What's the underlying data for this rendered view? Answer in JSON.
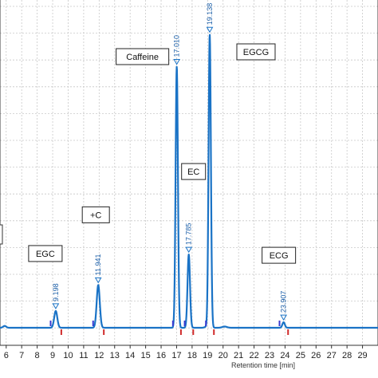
{
  "chart_data": {
    "type": "line",
    "title": "",
    "xlabel": "Retention time [min]",
    "ylabel": "",
    "xlim": [
      5.6,
      30.0
    ],
    "ylim": [
      -0.03,
      1.0
    ],
    "grid": true,
    "x_ticks": [
      "6",
      "7",
      "8",
      "9",
      "10",
      "11",
      "12",
      "13",
      "14",
      "15",
      "16",
      "17",
      "18",
      "19",
      "20",
      "21",
      "22",
      "23",
      "24",
      "25",
      "26",
      "27",
      "28",
      "29"
    ],
    "colors": {
      "trace": "#1a73c6",
      "marker_start": "#3a3ad0",
      "marker_end": "#d02a2a",
      "grid": "#c8c8c8",
      "frame": "#333333"
    },
    "peaks": [
      {
        "name": "EGC",
        "rt": 9.198,
        "rt_label": "9.198",
        "height": 0.055
      },
      {
        "name": "+C",
        "rt": 11.941,
        "rt_label": "11.941",
        "height": 0.14
      },
      {
        "name": "Caffeine",
        "rt": 17.01,
        "rt_label": "17.010",
        "height": 0.855
      },
      {
        "name": "EC",
        "rt": 17.785,
        "rt_label": "17.785",
        "height": 0.24
      },
      {
        "name": "EGCG",
        "rt": 19.138,
        "rt_label": "19.138",
        "height": 0.96
      },
      {
        "name": "ECG",
        "rt": 23.907,
        "rt_label": "23.907",
        "height": 0.018
      }
    ]
  }
}
